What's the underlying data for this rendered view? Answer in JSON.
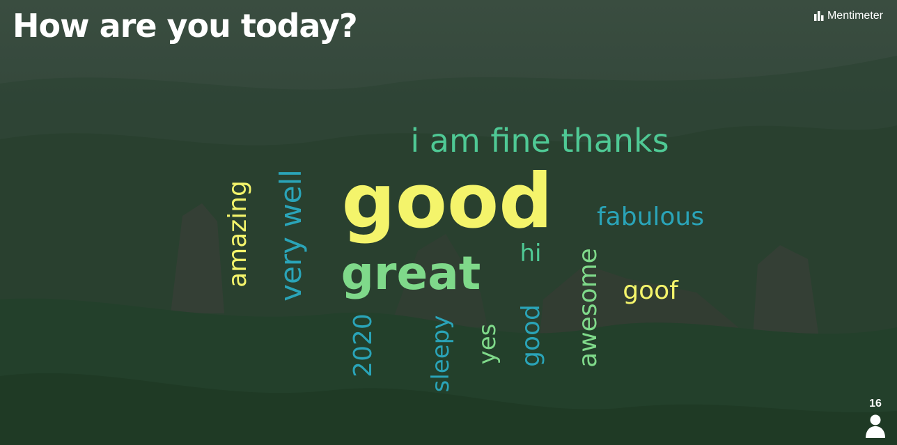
{
  "slide": {
    "title": "How are you today?",
    "brand": "Mentimeter",
    "responses_count": "16"
  },
  "colors": {
    "yellow": "#f4f46b",
    "green": "#7fd98a",
    "mint": "#4fc995",
    "teal": "#2aa4b8",
    "lime": "#a6e27a",
    "text": "#ffffff"
  },
  "wordcloud": [
    {
      "text": "i am fine thanks",
      "color": "mint",
      "orientation": "horizontal",
      "weight": "medium"
    },
    {
      "text": "good",
      "color": "yellow",
      "orientation": "horizontal",
      "weight": "largest"
    },
    {
      "text": "fabulous",
      "color": "teal",
      "orientation": "horizontal",
      "weight": "small"
    },
    {
      "text": "hi",
      "color": "mint",
      "orientation": "horizontal",
      "weight": "small"
    },
    {
      "text": "great",
      "color": "green",
      "orientation": "horizontal",
      "weight": "large"
    },
    {
      "text": "goof",
      "color": "yellow",
      "orientation": "horizontal",
      "weight": "small"
    },
    {
      "text": "amazing",
      "color": "yellow",
      "orientation": "vertical",
      "weight": "small"
    },
    {
      "text": "very well",
      "color": "teal",
      "orientation": "vertical",
      "weight": "medium"
    },
    {
      "text": "2020",
      "color": "teal",
      "orientation": "vertical",
      "weight": "small"
    },
    {
      "text": "sleepy",
      "color": "teal",
      "orientation": "vertical",
      "weight": "small"
    },
    {
      "text": "yes",
      "color": "green",
      "orientation": "vertical",
      "weight": "small"
    },
    {
      "text": "good",
      "color": "teal",
      "orientation": "vertical",
      "weight": "small"
    },
    {
      "text": "awesome",
      "color": "green",
      "orientation": "vertical",
      "weight": "small"
    }
  ]
}
